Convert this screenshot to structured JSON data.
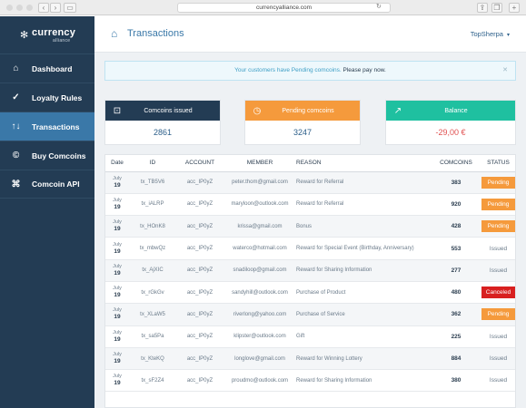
{
  "browser": {
    "url": "currencyalliance.com",
    "reload_icon": "reload-icon"
  },
  "logo": {
    "name": "currency",
    "sub": "alliance"
  },
  "sidebar": {
    "items": [
      {
        "label": "Dashboard",
        "icon": "home-icon"
      },
      {
        "label": "Loyalty Rules",
        "icon": "check-badge-icon"
      },
      {
        "label": "Transactions",
        "icon": "swap-arrows-icon",
        "active": true
      },
      {
        "label": "Buy Comcoins",
        "icon": "coin-icon"
      },
      {
        "label": "Comcoin API",
        "icon": "command-icon"
      }
    ]
  },
  "header": {
    "title": "Transactions",
    "user": "TopSherpa"
  },
  "alert": {
    "text": "Your customers have Pending comcoins.",
    "cta": "Please pay now."
  },
  "cards": [
    {
      "label": "Comcoins issued",
      "value": "2861",
      "color": "#233c54",
      "icon": "coin-card-icon"
    },
    {
      "label": "Pending comcoins",
      "value": "3247",
      "color": "#f59a3c",
      "icon": "clock-icon"
    },
    {
      "label": "Balance",
      "value": "-29,00 €",
      "color": "#1fc0a0",
      "icon": "trend-icon"
    }
  ],
  "table": {
    "headers": [
      "Date",
      "ID",
      "ACCOUNT",
      "MEMBER",
      "REASON",
      "COMCOINS",
      "STATUS"
    ],
    "rows": [
      {
        "month": "July",
        "day": "19",
        "id": "tx_TB5V6",
        "account": "acc_IP0yZ",
        "member": "peter.thom@gmail.com",
        "reason": "Reward for Referral",
        "comcoins": "383",
        "status": "Pending"
      },
      {
        "month": "July",
        "day": "19",
        "id": "tx_iALRP",
        "account": "acc_IP0yZ",
        "member": "maryloon@outlook.com",
        "reason": "Reward for Referral",
        "comcoins": "920",
        "status": "Pending"
      },
      {
        "month": "July",
        "day": "19",
        "id": "tx_HOnK8",
        "account": "acc_IP0yZ",
        "member": "krissa@gmail.com",
        "reason": "Bonus",
        "comcoins": "428",
        "status": "Pending"
      },
      {
        "month": "July",
        "day": "19",
        "id": "tx_mbwQz",
        "account": "acc_IP0yZ",
        "member": "waterco@hotmail.com",
        "reason": "Reward for Special Event (Birthday, Anniversary)",
        "comcoins": "553",
        "status": "Issued"
      },
      {
        "month": "July",
        "day": "19",
        "id": "tx_AjXIC",
        "account": "acc_IP0yZ",
        "member": "snadiloop@gmail.com",
        "reason": "Reward for Sharing Information",
        "comcoins": "277",
        "status": "Issued"
      },
      {
        "month": "July",
        "day": "19",
        "id": "tx_rGkGv",
        "account": "acc_IP0yZ",
        "member": "sandyhill@outlook.com",
        "reason": "Purchase of Product",
        "comcoins": "480",
        "status": "Canceled"
      },
      {
        "month": "July",
        "day": "19",
        "id": "tx_XLaW5",
        "account": "acc_IP0yZ",
        "member": "riverlong@yahoo.com",
        "reason": "Purchase of Service",
        "comcoins": "362",
        "status": "Pending"
      },
      {
        "month": "July",
        "day": "19",
        "id": "tx_sa5Pa",
        "account": "acc_IP0yZ",
        "member": "klipster@outlook.com",
        "reason": "Gift",
        "comcoins": "225",
        "status": "Issued"
      },
      {
        "month": "July",
        "day": "19",
        "id": "tx_KteKQ",
        "account": "acc_IP0yZ",
        "member": "longlove@gmail.com",
        "reason": "Reward for Winning Lottery",
        "comcoins": "884",
        "status": "Issued"
      },
      {
        "month": "July",
        "day": "19",
        "id": "tx_sF2Z4",
        "account": "acc_IP0yZ",
        "member": "proudmo@outlook.com",
        "reason": "Reward for Sharing Information",
        "comcoins": "380",
        "status": "Issued"
      }
    ]
  }
}
